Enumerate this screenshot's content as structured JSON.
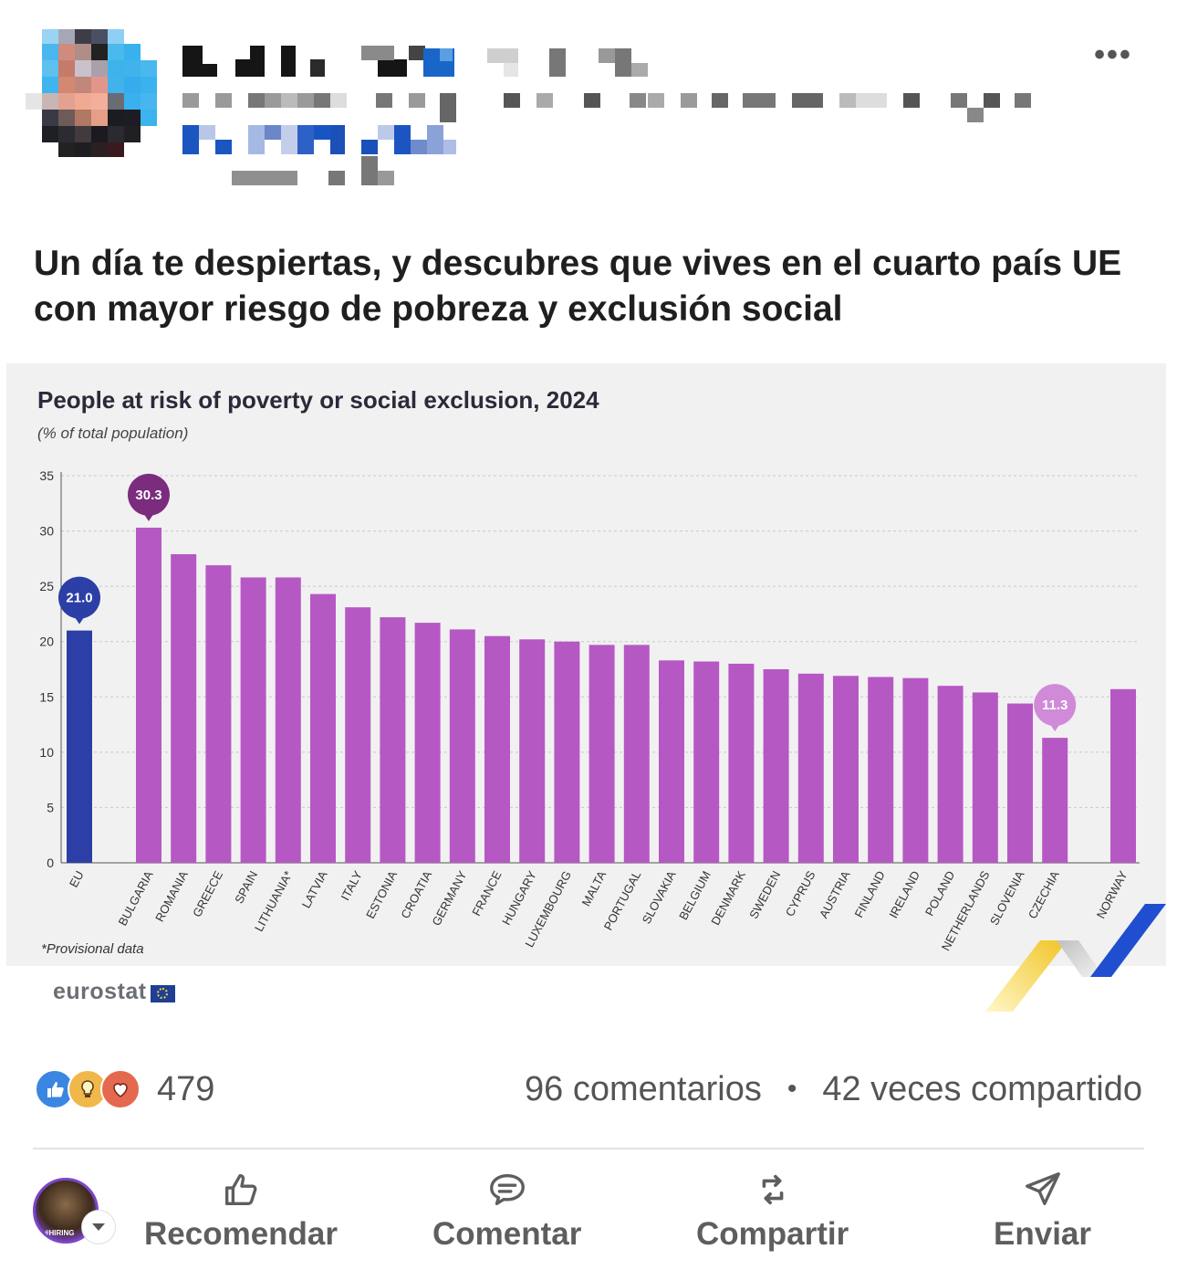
{
  "post": {
    "text": "Un día te despiertas, y descubres que vives en el cuarto país UE con mayor riesgo de pobreza y exclusión social"
  },
  "chart_data": {
    "type": "bar",
    "title": "People at risk of poverty or social exclusion, 2024",
    "subtitle": "(% of total population)",
    "ylim": [
      0,
      35
    ],
    "yticks": [
      0,
      5,
      10,
      15,
      20,
      25,
      30,
      35
    ],
    "grid": true,
    "categories": [
      "EU",
      "BULGARIA",
      "ROMANIA",
      "GREECE",
      "SPAIN",
      "LITHUANIA*",
      "LATVIA",
      "ITALY",
      "ESTONIA",
      "CROATIA",
      "GERMANY",
      "FRANCE",
      "HUNGARY",
      "LUXEMBOURG",
      "MALTA",
      "PORTUGAL",
      "SLOVAKIA",
      "BELGIUM",
      "DENMARK",
      "SWEDEN",
      "CYPRUS",
      "AUSTRIA",
      "FINLAND",
      "IRELAND",
      "POLAND",
      "NETHERLANDS",
      "SLOVENIA",
      "CZECHIA",
      "NORWAY"
    ],
    "values": [
      21.0,
      30.3,
      27.9,
      26.9,
      25.8,
      25.8,
      24.3,
      23.1,
      22.2,
      21.7,
      21.1,
      20.5,
      20.2,
      20.0,
      19.7,
      19.7,
      18.3,
      18.2,
      18.0,
      17.5,
      17.1,
      16.9,
      16.8,
      16.7,
      16.0,
      15.4,
      14.4,
      11.3,
      15.7
    ],
    "highlights": [
      {
        "category": "EU",
        "label": "21.0"
      },
      {
        "category": "BULGARIA",
        "label": "30.3"
      },
      {
        "category": "CZECHIA",
        "label": "11.3"
      }
    ],
    "colors": {
      "eu": "#2b3fa6",
      "countries": "#b658c4",
      "min_callout": "#d08ad8",
      "max_callout": "#7b2c7e"
    },
    "note": "*Provisional data",
    "source": "eurostat"
  },
  "reactions": {
    "count": "479",
    "icons": [
      "like-icon",
      "insightful-icon",
      "love-icon"
    ]
  },
  "stats": {
    "comments": "96 comentarios",
    "separator": "•",
    "shares": "42 veces compartido"
  },
  "actions": {
    "recommend": "Recomendar",
    "comment": "Comentar",
    "share": "Compartir",
    "send": "Enviar",
    "avatar_badge": "#HIRING"
  }
}
